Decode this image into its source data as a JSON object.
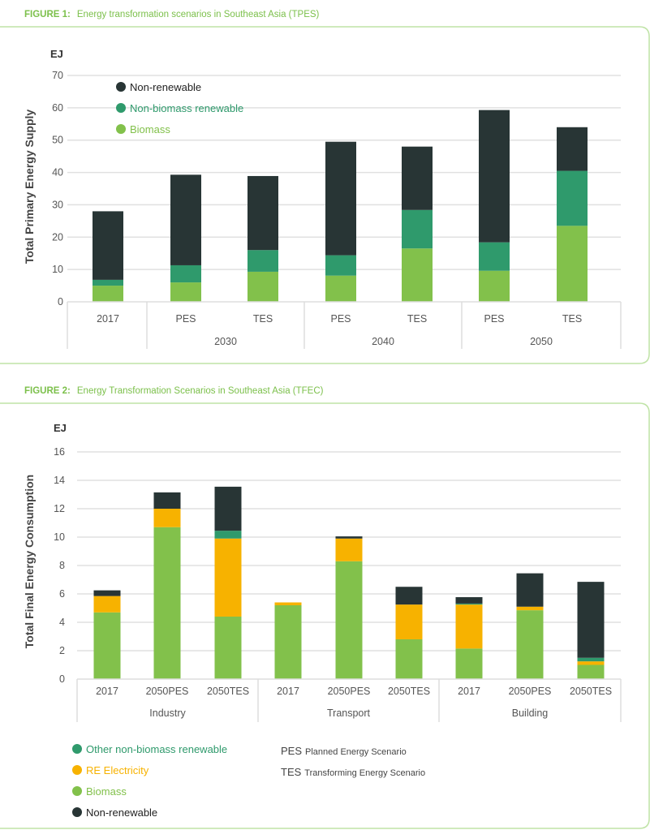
{
  "colors": {
    "non_renewable": "#283535",
    "non_biomass_renewable": "#2f9a6c",
    "biomass": "#82c14b",
    "re_electricity": "#f7b200",
    "frame": "#bfe3a6",
    "title": "#7cc04b",
    "grid": "#e0e0e0"
  },
  "chart_data": [
    {
      "type": "bar",
      "stacked": true,
      "figure_label": "FIGURE 1:",
      "title": "Energy transformation scenarios in Southeast Asia (TPES)",
      "unit": "EJ",
      "ylabel": "Total Primary Energy Supply",
      "ylim": [
        0,
        70
      ],
      "yticks": [
        0,
        10,
        20,
        30,
        40,
        50,
        60,
        70
      ],
      "grid": true,
      "legend_position": "top-left",
      "categories": [
        "2017",
        "PES",
        "TES",
        "PES",
        "TES",
        "PES",
        "TES"
      ],
      "groups": [
        {
          "label": "",
          "members": [
            "2017"
          ]
        },
        {
          "label": "2030",
          "members": [
            "PES",
            "TES"
          ]
        },
        {
          "label": "2040",
          "members": [
            "PES",
            "TES"
          ]
        },
        {
          "label": "2050",
          "members": [
            "PES",
            "TES"
          ]
        }
      ],
      "series": [
        {
          "name": "Biomass",
          "color": "#82c14b",
          "values": [
            5.0,
            6.0,
            9.3,
            8.1,
            16.5,
            9.6,
            23.5
          ]
        },
        {
          "name": "Non-biomass renewable",
          "color": "#2f9a6c",
          "values": [
            1.8,
            5.3,
            6.7,
            6.3,
            11.9,
            8.8,
            17.0
          ]
        },
        {
          "name": "Non-renewable",
          "color": "#283535",
          "values": [
            21.2,
            28.0,
            22.9,
            35.1,
            19.6,
            40.9,
            13.5
          ]
        }
      ],
      "legend_order": [
        "Non-renewable",
        "Non-biomass renewable",
        "Biomass"
      ]
    },
    {
      "type": "bar",
      "stacked": true,
      "figure_label": "FIGURE 2:",
      "title": "Energy Transformation Scenarios in Southeast Asia (TFEC)",
      "unit": "EJ",
      "ylabel": "Total Final Energy Consumption",
      "ylim": [
        0,
        16
      ],
      "yticks": [
        0,
        2,
        4,
        6,
        8,
        10,
        12,
        14,
        16
      ],
      "grid": true,
      "legend_position": "bottom",
      "categories": [
        "2017",
        "2050PES",
        "2050TES",
        "2017",
        "2050PES",
        "2050TES",
        "2017",
        "2050PES",
        "2050TES"
      ],
      "groups": [
        {
          "label": "Industry",
          "members": [
            "2017",
            "2050PES",
            "2050TES"
          ]
        },
        {
          "label": "Transport",
          "members": [
            "2017",
            "2050PES",
            "2050TES"
          ]
        },
        {
          "label": "Building",
          "members": [
            "2017",
            "2050PES",
            "2050TES"
          ]
        }
      ],
      "series": [
        {
          "name": "Biomass",
          "color": "#82c14b",
          "values": [
            4.7,
            10.7,
            4.4,
            5.2,
            8.3,
            2.8,
            2.15,
            4.85,
            1.0
          ]
        },
        {
          "name": "RE Electricity",
          "color": "#f7b200",
          "values": [
            1.15,
            1.3,
            5.5,
            0.2,
            1.6,
            2.45,
            3.1,
            0.25,
            0.25
          ]
        },
        {
          "name": "Other non-biomass renewable",
          "color": "#2f9a6c",
          "values": [
            0,
            0,
            0.55,
            0,
            0,
            0,
            0.07,
            0,
            0.25
          ]
        },
        {
          "name": "Non-renewable",
          "color": "#283535",
          "values": [
            0.4,
            1.15,
            3.1,
            0,
            0.15,
            1.25,
            0.45,
            2.35,
            5.35
          ]
        }
      ],
      "legend_order": [
        "Other non-biomass renewable",
        "RE Electricity",
        "Biomass",
        "Non-renewable"
      ],
      "abbreviations": [
        {
          "abbr": "PES",
          "text": "Planned Energy Scenario"
        },
        {
          "abbr": "TES",
          "text": "Transforming Energy Scenario"
        }
      ]
    }
  ]
}
